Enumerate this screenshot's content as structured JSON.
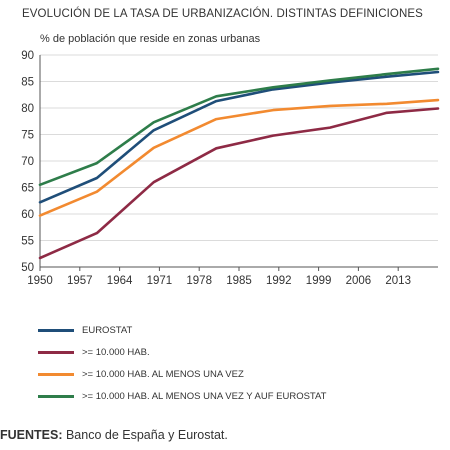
{
  "chart_data": {
    "type": "line",
    "title": "EVOLUCIÓN DE LA TASA DE URBANIZACIÓN. DISTINTAS DEFINICIONES",
    "ylabel": "% de población que reside en zonas urbanas",
    "xlabel": "",
    "ylim": [
      50,
      90
    ],
    "xlim": [
      1950,
      2020
    ],
    "yticks": [
      50,
      55,
      60,
      65,
      70,
      75,
      80,
      85,
      90
    ],
    "xticks": [
      1950,
      1957,
      1964,
      1971,
      1978,
      1985,
      1992,
      1999,
      2006,
      2013
    ],
    "grid": "horizontal",
    "legend_position": "bottom",
    "series": [
      {
        "name": "EUROSTAT",
        "color": "#1f4e79",
        "x": [
          1950,
          1960,
          1970,
          1981,
          1991,
          2001,
          2011,
          2020
        ],
        "y": [
          62.2,
          66.8,
          75.8,
          81.3,
          83.5,
          84.8,
          85.9,
          86.8
        ]
      },
      {
        "name": ">= 10.000 HAB.",
        "color": "#8e2a45",
        "x": [
          1950,
          1960,
          1970,
          1981,
          1991,
          2001,
          2011,
          2020
        ],
        "y": [
          51.7,
          56.4,
          66.0,
          72.4,
          74.8,
          76.3,
          79.1,
          79.9
        ]
      },
      {
        "name": ">= 10.000 HAB. AL MENOS UNA VEZ",
        "color": "#f28a30",
        "x": [
          1950,
          1960,
          1970,
          1981,
          1991,
          2001,
          2011,
          2020
        ],
        "y": [
          59.7,
          64.2,
          72.5,
          77.9,
          79.6,
          80.4,
          80.8,
          81.5
        ]
      },
      {
        "name": ">= 10.000 HAB. AL MENOS UNA VEZ Y AUF EUROSTAT",
        "color": "#2e7d4a",
        "x": [
          1950,
          1960,
          1970,
          1981,
          1991,
          2001,
          2011,
          2020
        ],
        "y": [
          65.5,
          69.6,
          77.3,
          82.2,
          83.9,
          85.2,
          86.4,
          87.4
        ]
      }
    ]
  },
  "source": {
    "label": "FUENTES:",
    "text": " Banco de España y Eurostat."
  }
}
